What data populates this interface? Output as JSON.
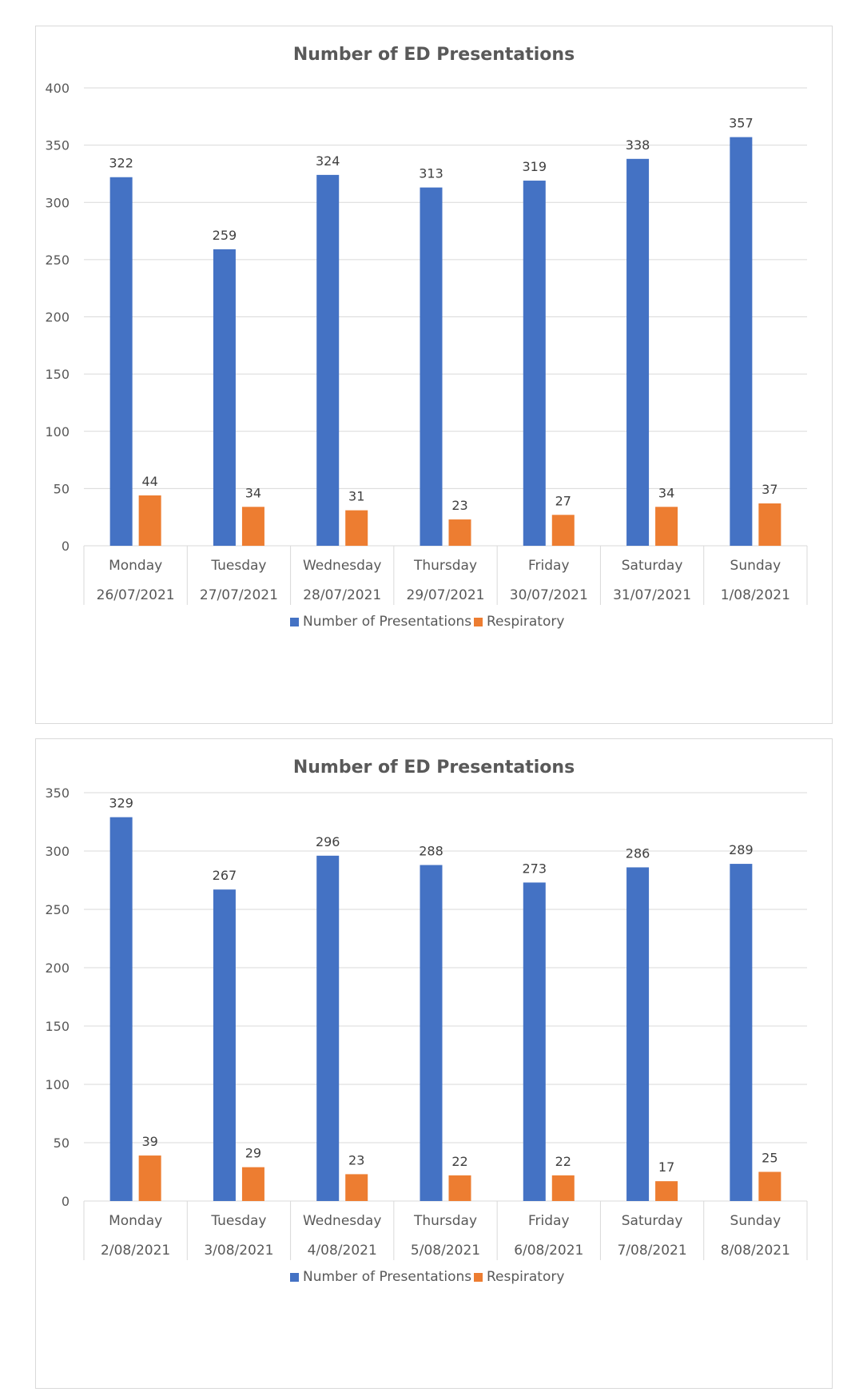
{
  "chart_data": [
    {
      "type": "bar",
      "title": "Number of ED Presentations",
      "categories": [
        "Monday",
        "Tuesday",
        "Wednesday",
        "Thursday",
        "Friday",
        "Saturday",
        "Sunday"
      ],
      "sub_categories": [
        "26/07/2021",
        "27/07/2021",
        "28/07/2021",
        "29/07/2021",
        "30/07/2021",
        "31/07/2021",
        "1/08/2021"
      ],
      "series": [
        {
          "name": "Number of Presentations",
          "color": "#4472C4",
          "values": [
            322,
            259,
            324,
            313,
            319,
            338,
            357
          ]
        },
        {
          "name": "Respiratory",
          "color": "#ED7D31",
          "values": [
            44,
            34,
            31,
            23,
            27,
            34,
            37
          ]
        }
      ],
      "ylim": [
        0,
        400
      ],
      "yticks": [
        0,
        50,
        100,
        150,
        200,
        250,
        300,
        350,
        400
      ],
      "grid": true,
      "legend": "bottom",
      "data_labels": true
    },
    {
      "type": "bar",
      "title": "Number of ED Presentations",
      "categories": [
        "Monday",
        "Tuesday",
        "Wednesday",
        "Thursday",
        "Friday",
        "Saturday",
        "Sunday"
      ],
      "sub_categories": [
        "2/08/2021",
        "3/08/2021",
        "4/08/2021",
        "5/08/2021",
        "6/08/2021",
        "7/08/2021",
        "8/08/2021"
      ],
      "series": [
        {
          "name": "Number of Presentations",
          "color": "#4472C4",
          "values": [
            329,
            267,
            296,
            288,
            273,
            286,
            289
          ]
        },
        {
          "name": "Respiratory",
          "color": "#ED7D31",
          "values": [
            39,
            29,
            23,
            22,
            22,
            17,
            25
          ]
        }
      ],
      "ylim": [
        0,
        350
      ],
      "yticks": [
        0,
        50,
        100,
        150,
        200,
        250,
        300,
        350
      ],
      "grid": true,
      "legend": "bottom",
      "data_labels": true
    }
  ]
}
